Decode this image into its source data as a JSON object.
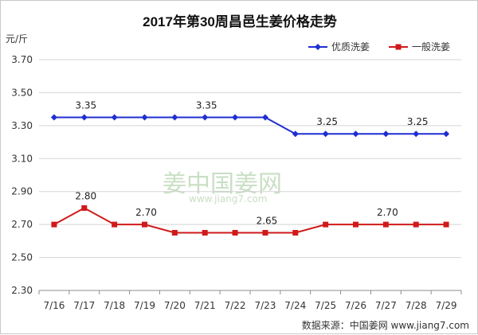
{
  "chart_data": {
    "type": "line",
    "title": "2017年第30周昌邑生姜价格走势",
    "ylabel": "元/斤",
    "xlabel": "",
    "categories": [
      "7/16",
      "7/17",
      "7/18",
      "7/19",
      "7/20",
      "7/21",
      "7/22",
      "7/23",
      "7/24",
      "7/25",
      "7/26",
      "7/27",
      "7/28",
      "7/29"
    ],
    "ylim": [
      2.3,
      3.7
    ],
    "yticks": [
      "2.30",
      "2.50",
      "2.70",
      "2.90",
      "3.10",
      "3.30",
      "3.50",
      "3.70"
    ],
    "grid": "horizontal",
    "legend_position": "top-right",
    "series": [
      {
        "name": "优质洗姜",
        "color": "#1f2fd0",
        "marker": "diamond",
        "values": [
          3.35,
          3.35,
          3.35,
          3.35,
          3.35,
          3.35,
          3.35,
          3.35,
          3.25,
          3.25,
          3.25,
          3.25,
          3.25,
          3.25
        ],
        "annotations": [
          {
            "index": 1,
            "text": "3.35"
          },
          {
            "index": 5,
            "text": "3.35"
          },
          {
            "index": 9,
            "text": "3.25"
          },
          {
            "index": 12,
            "text": "3.25"
          }
        ]
      },
      {
        "name": "一般洗姜",
        "color": "#d01a1a",
        "marker": "square",
        "values": [
          2.7,
          2.8,
          2.7,
          2.7,
          2.65,
          2.65,
          2.65,
          2.65,
          2.65,
          2.7,
          2.7,
          2.7,
          2.7,
          2.7
        ],
        "annotations": [
          {
            "index": 1,
            "text": "2.80"
          },
          {
            "index": 3,
            "text": "2.70"
          },
          {
            "index": 7,
            "text": "2.65"
          },
          {
            "index": 11,
            "text": "2.70"
          }
        ]
      }
    ],
    "source": "数据来源：中国姜网 www.jiang7.com",
    "watermark": {
      "cn": "姜中国姜网",
      "en": "www.jiang7.com"
    }
  }
}
